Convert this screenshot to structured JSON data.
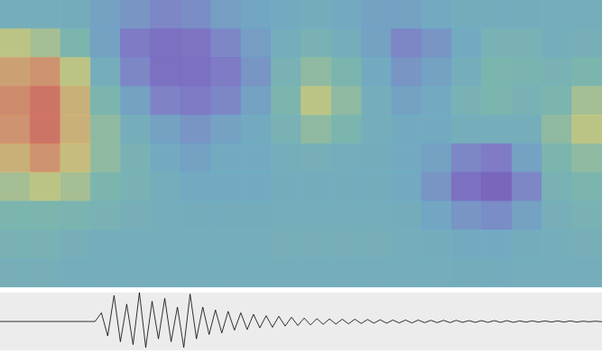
{
  "chart_data": [
    {
      "type": "heatmap",
      "cells": [
        [
          0.4,
          0.4,
          0.38,
          0.3,
          0.25,
          0.2,
          0.22,
          0.28,
          0.32,
          0.35,
          0.38,
          0.35,
          0.3,
          0.3,
          0.35,
          0.38,
          0.38,
          0.38,
          0.4,
          0.4
        ],
        [
          0.65,
          0.6,
          0.5,
          0.3,
          0.15,
          0.1,
          0.12,
          0.2,
          0.28,
          0.4,
          0.45,
          0.4,
          0.3,
          0.2,
          0.25,
          0.35,
          0.45,
          0.45,
          0.4,
          0.42
        ],
        [
          0.8,
          0.85,
          0.65,
          0.4,
          0.2,
          0.1,
          0.1,
          0.15,
          0.25,
          0.45,
          0.55,
          0.5,
          0.35,
          0.25,
          0.3,
          0.4,
          0.5,
          0.48,
          0.45,
          0.5
        ],
        [
          0.88,
          0.95,
          0.75,
          0.5,
          0.3,
          0.18,
          0.15,
          0.2,
          0.3,
          0.5,
          0.65,
          0.55,
          0.4,
          0.3,
          0.35,
          0.45,
          0.5,
          0.45,
          0.5,
          0.6
        ],
        [
          0.85,
          0.95,
          0.75,
          0.55,
          0.4,
          0.3,
          0.25,
          0.3,
          0.35,
          0.45,
          0.55,
          0.5,
          0.4,
          0.35,
          0.35,
          0.4,
          0.4,
          0.4,
          0.55,
          0.65
        ],
        [
          0.75,
          0.85,
          0.7,
          0.55,
          0.45,
          0.35,
          0.3,
          0.35,
          0.35,
          0.4,
          0.42,
          0.4,
          0.38,
          0.35,
          0.3,
          0.2,
          0.15,
          0.3,
          0.5,
          0.55
        ],
        [
          0.6,
          0.65,
          0.6,
          0.5,
          0.45,
          0.4,
          0.35,
          0.35,
          0.35,
          0.38,
          0.38,
          0.38,
          0.38,
          0.35,
          0.25,
          0.1,
          0.05,
          0.2,
          0.45,
          0.5
        ],
        [
          0.5,
          0.5,
          0.48,
          0.45,
          0.42,
          0.4,
          0.38,
          0.38,
          0.38,
          0.4,
          0.4,
          0.4,
          0.4,
          0.38,
          0.32,
          0.25,
          0.22,
          0.3,
          0.42,
          0.45
        ],
        [
          0.45,
          0.45,
          0.42,
          0.4,
          0.4,
          0.4,
          0.4,
          0.4,
          0.4,
          0.42,
          0.42,
          0.42,
          0.42,
          0.4,
          0.38,
          0.35,
          0.35,
          0.38,
          0.4,
          0.42
        ],
        [
          0.42,
          0.42,
          0.4,
          0.4,
          0.4,
          0.4,
          0.4,
          0.4,
          0.4,
          0.4,
          0.4,
          0.4,
          0.4,
          0.4,
          0.4,
          0.38,
          0.38,
          0.4,
          0.4,
          0.4
        ]
      ],
      "color_range": [
        0,
        1
      ],
      "tick_labels": false
    },
    {
      "type": "line",
      "values": [
        0,
        0,
        0,
        0,
        0,
        0,
        0,
        0,
        0,
        0,
        0,
        0,
        0,
        0,
        0,
        0,
        0.3,
        -0.5,
        0.9,
        -0.7,
        0.6,
        -0.8,
        1.0,
        -0.9,
        0.7,
        -0.6,
        0.8,
        -0.7,
        0.5,
        -0.9,
        0.95,
        -0.6,
        0.5,
        -0.45,
        0.4,
        -0.4,
        0.35,
        -0.3,
        0.3,
        -0.28,
        0.25,
        -0.22,
        0.2,
        -0.2,
        0.18,
        -0.16,
        0.15,
        -0.14,
        0.12,
        -0.12,
        0.1,
        -0.1,
        0.09,
        -0.09,
        0.08,
        -0.08,
        0.08,
        -0.07,
        0.07,
        -0.06,
        0.06,
        -0.06,
        0.05,
        -0.05,
        0.05,
        -0.05,
        0.05,
        -0.04,
        0.04,
        -0.04,
        0.04,
        -0.04,
        0.04,
        -0.03,
        0.03,
        -0.03,
        0.03,
        -0.03,
        0.03,
        -0.03,
        0.03,
        -0.03,
        0.02,
        -0.02,
        0.02,
        -0.02,
        0.02,
        -0.02,
        0.02,
        -0.02,
        0.02,
        -0.02,
        0.01,
        -0.01,
        0.01,
        -0.01
      ],
      "ylim": [
        -1,
        1
      ],
      "color": "#000000",
      "tick_labels": false
    }
  ]
}
